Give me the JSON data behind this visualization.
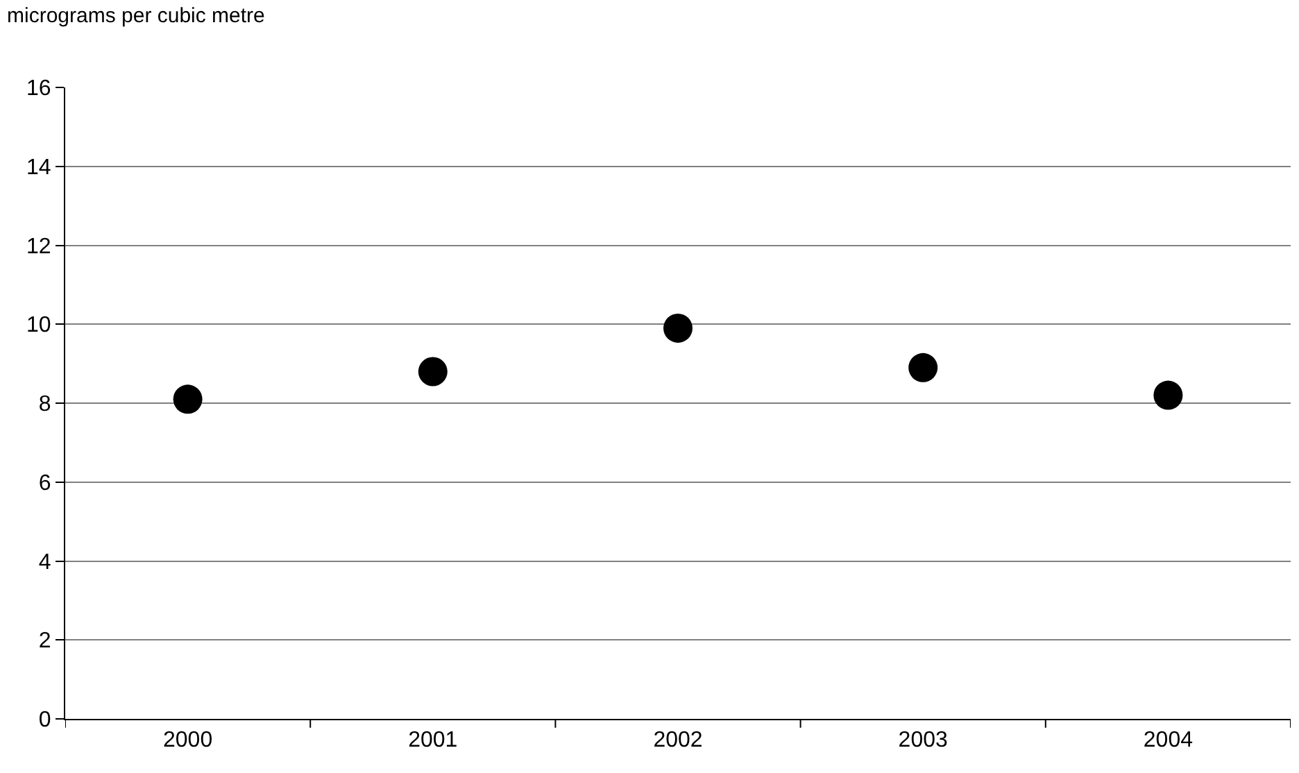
{
  "chart_data": {
    "type": "scatter",
    "ylabel": "micrograms per cubic metre",
    "categories": [
      "2000",
      "2001",
      "2002",
      "2003",
      "2004"
    ],
    "series": [
      {
        "color": "#000000",
        "values": [
          8.1,
          8.8,
          9.9,
          8.9,
          8.2
        ]
      }
    ],
    "ylim": [
      0,
      16
    ],
    "yticks": [
      0,
      2,
      4,
      6,
      8,
      10,
      12,
      14,
      16
    ],
    "grid": "y",
    "marker": "circle"
  }
}
